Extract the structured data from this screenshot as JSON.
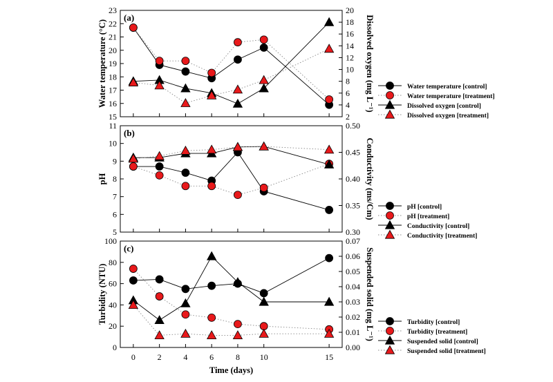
{
  "chart_data": [
    {
      "type": "line",
      "panel_label": "(a)",
      "x": [
        0,
        2,
        4,
        6,
        8,
        10,
        15
      ],
      "xticks": [
        "0",
        "2",
        "4",
        "6",
        "8",
        "10",
        "15"
      ],
      "xlim": [
        -1,
        16
      ],
      "ylabel_left": "Water temperature (°C)",
      "ylabel_right": "Dissolved oxygen (mg L⁻¹)",
      "ylim_left": [
        15,
        23
      ],
      "ylim_right": [
        2,
        20
      ],
      "yticks_left": [
        "15",
        "16",
        "17",
        "18",
        "19",
        "20",
        "21",
        "22",
        "23"
      ],
      "yticks_right": [
        "2",
        "4",
        "6",
        "8",
        "10",
        "12",
        "14",
        "16",
        "18",
        "20"
      ],
      "series": [
        {
          "name": "Water temperature [control]",
          "axis": "left",
          "marker": "circle",
          "color": "#000000",
          "line": "solid",
          "values": [
            21.7,
            18.9,
            18.4,
            17.9,
            19.3,
            20.2,
            15.9
          ]
        },
        {
          "name": "Water temperature [treatment]",
          "axis": "left",
          "marker": "circle",
          "color": "#e8191b",
          "line": "dotted",
          "values": [
            21.7,
            19.2,
            19.2,
            18.3,
            20.6,
            20.8,
            16.3
          ]
        },
        {
          "name": "Dissolved oxygen [control]",
          "axis": "right",
          "marker": "triangle",
          "color": "#000000",
          "line": "solid",
          "values": [
            8.0,
            8.2,
            6.8,
            6.0,
            4.2,
            6.8,
            18.0
          ]
        },
        {
          "name": "Dissolved oxygen [treatment]",
          "axis": "right",
          "marker": "triangle",
          "color": "#e8191b",
          "line": "dotted",
          "values": [
            7.8,
            7.3,
            4.3,
            5.6,
            6.6,
            8.2,
            13.5
          ]
        }
      ]
    },
    {
      "type": "line",
      "panel_label": "(b)",
      "x": [
        0,
        2,
        4,
        6,
        8,
        10,
        15
      ],
      "xticks": [
        "0",
        "2",
        "4",
        "6",
        "8",
        "10",
        "15"
      ],
      "xlim": [
        -1,
        16
      ],
      "ylabel_left": "pH",
      "ylabel_right": "Conductivity (ms/Cm)",
      "ylim_left": [
        5,
        11
      ],
      "ylim_right": [
        0.3,
        0.5
      ],
      "yticks_left": [
        "5",
        "6",
        "7",
        "8",
        "9",
        "10",
        "11"
      ],
      "yticks_right": [
        "0.30",
        "0.35",
        "0.40",
        "0.45",
        "0.50"
      ],
      "series": [
        {
          "name": "pH [control]",
          "axis": "left",
          "marker": "circle",
          "color": "#000000",
          "line": "solid",
          "values": [
            8.7,
            8.7,
            8.35,
            7.9,
            9.5,
            7.3,
            6.25
          ]
        },
        {
          "name": "pH [treatment]",
          "axis": "left",
          "marker": "circle",
          "color": "#e8191b",
          "line": "dotted",
          "values": [
            8.7,
            8.2,
            7.6,
            7.6,
            7.1,
            7.5,
            8.85
          ]
        },
        {
          "name": "Conductivity [control]",
          "axis": "right",
          "marker": "triangle",
          "color": "#000000",
          "line": "solid",
          "values": [
            0.44,
            0.44,
            0.448,
            0.448,
            0.46,
            0.461,
            0.427
          ]
        },
        {
          "name": "Conductivity [treatment]",
          "axis": "right",
          "marker": "triangle",
          "color": "#e8191b",
          "line": "dotted",
          "values": [
            0.438,
            0.443,
            0.453,
            0.455,
            0.46,
            0.461,
            0.455
          ]
        }
      ]
    },
    {
      "type": "line",
      "panel_label": "(c)",
      "x": [
        0,
        2,
        4,
        6,
        8,
        10,
        15
      ],
      "xticks": [
        "0",
        "2",
        "4",
        "6",
        "8",
        "10",
        "15"
      ],
      "xlim": [
        -1,
        16
      ],
      "xlabel": "Time (days)",
      "ylabel_left": "Turbidity (NTU)",
      "ylabel_right": "Suspended solid (mg L⁻¹)",
      "ylim_left": [
        0,
        100
      ],
      "ylim_right": [
        0,
        0.07
      ],
      "yticks_left": [
        "0",
        "20",
        "40",
        "60",
        "80",
        "100"
      ],
      "yticks_right": [
        "0.00",
        "0.01",
        "0.02",
        "0.03",
        "0.04",
        "0.05",
        "0.06",
        "0.07"
      ],
      "series": [
        {
          "name": "Turbidity [control]",
          "axis": "left",
          "marker": "circle",
          "color": "#000000",
          "line": "solid",
          "values": [
            63,
            64,
            55,
            58,
            60,
            51,
            84
          ]
        },
        {
          "name": "Turbidity [treatment]",
          "axis": "left",
          "marker": "circle",
          "color": "#e8191b",
          "line": "dotted",
          "values": [
            74,
            48,
            31,
            28,
            22,
            20,
            17
          ]
        },
        {
          "name": "Suspended solid [control]",
          "axis": "right",
          "marker": "triangle",
          "color": "#000000",
          "line": "solid",
          "values": [
            0.031,
            0.018,
            0.029,
            0.06,
            0.043,
            0.03,
            0.03
          ]
        },
        {
          "name": "Suspended solid [treatment]",
          "axis": "right",
          "marker": "triangle",
          "color": "#e8191b",
          "line": "dotted",
          "values": [
            0.028,
            0.008,
            0.009,
            0.008,
            0.008,
            0.009,
            0.009
          ]
        }
      ]
    }
  ]
}
